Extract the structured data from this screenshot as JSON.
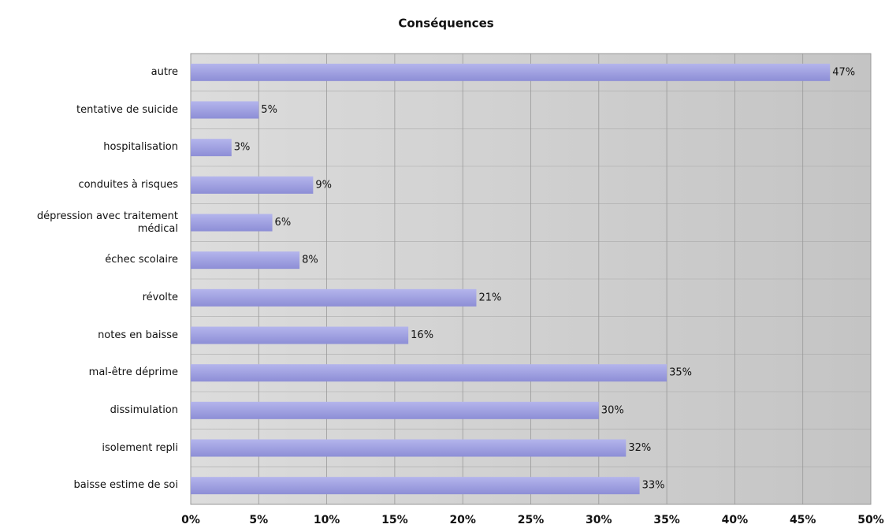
{
  "chart_data": {
    "type": "bar",
    "orientation": "horizontal",
    "title": "Conséquences",
    "categories": [
      "autre",
      "tentative de suicide",
      "hospitalisation",
      "conduites à risques",
      "dépression avec traitement médical",
      "échec scolaire",
      "révolte",
      "notes en baisse",
      "mal-être déprime",
      "dissimulation",
      "isolement repli",
      "baisse estime de soi"
    ],
    "values": [
      47,
      5,
      3,
      9,
      6,
      8,
      21,
      16,
      35,
      30,
      32,
      33
    ],
    "value_labels": [
      "47%",
      "5%",
      "3%",
      "9%",
      "6%",
      "8%",
      "21%",
      "16%",
      "35%",
      "30%",
      "32%",
      "33%"
    ],
    "color": "#9c9de0",
    "xlim": [
      0,
      50
    ],
    "xticks": [
      {
        "value": 0,
        "label": "0%"
      },
      {
        "value": 5,
        "label": "5%"
      },
      {
        "value": 10,
        "label": "10%"
      },
      {
        "value": 15,
        "label": "15%"
      },
      {
        "value": 20,
        "label": "20%"
      },
      {
        "value": 25,
        "label": "25%"
      },
      {
        "value": 30,
        "label": "30%"
      },
      {
        "value": 35,
        "label": "35%"
      },
      {
        "value": 40,
        "label": "40%"
      },
      {
        "value": 45,
        "label": "45%"
      },
      {
        "value": 50,
        "label": "50%"
      }
    ],
    "grid": true
  }
}
